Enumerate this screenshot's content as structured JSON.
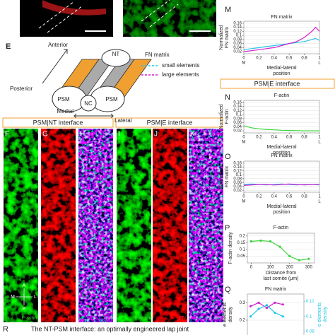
{
  "diagram": {
    "label": "E",
    "anterior": "Anterior",
    "nt": "NT",
    "posterior": "Posterior",
    "psm_left": "PSM",
    "nc": "NC",
    "psm_right": "PSM",
    "medial": "Medial",
    "lateral": "Lateral",
    "legend": {
      "title": "FN matrix",
      "items": [
        {
          "name": "small elements",
          "color": "#22c5e6"
        },
        {
          "name": "large elements",
          "color": "#d41fd0"
        }
      ]
    }
  },
  "micrographs": {
    "groups": [
      {
        "title": "PSM|NT interface",
        "panels": [
          {
            "label": "F",
            "stain": "F-actin",
            "channel": "green",
            "color": "#3cd23c"
          },
          {
            "label": "G",
            "stain": "FN",
            "channel": "red",
            "color": "#e52222"
          },
          {
            "label": "H",
            "stain": "FN",
            "channel": "merge",
            "color": "#d41fd0"
          }
        ]
      },
      {
        "title": "PSM|E interface",
        "panels": [
          {
            "label": "I",
            "stain": "F-actin",
            "channel": "green",
            "color": "#3cd23c"
          },
          {
            "label": "J",
            "stain": "FN",
            "channel": "red",
            "color": "#e52222"
          },
          {
            "label": "K",
            "stain": "FN",
            "channel": "merge",
            "color": "#d41fd0"
          }
        ]
      }
    ],
    "compass": {
      "a": "A",
      "p": "P",
      "m": "M",
      "l": "L"
    }
  },
  "right_header": "PSM|E interface",
  "plots": [
    {
      "type": "line",
      "label": "M",
      "title": "FN matrix",
      "ylabel": [
        "Normalized",
        "FN matrix"
      ],
      "xlabel": [
        "Medial-lateral",
        "position"
      ],
      "end_labels": [
        "M",
        "L"
      ],
      "xlim": [
        0,
        1
      ],
      "xticks": [
        0,
        0.2,
        0.4,
        0.6,
        0.8,
        1
      ],
      "ylim": [
        0.01,
        0.17
      ],
      "yticks": [
        0.02,
        0.04,
        0.06,
        0.08,
        0.1,
        0.12,
        0.14,
        0.16
      ],
      "x": [
        0,
        0.1,
        0.2,
        0.3,
        0.4,
        0.5,
        0.6,
        0.7,
        0.8,
        0.9,
        0.95,
        1
      ],
      "series": [
        {
          "color": "#22c5e6",
          "values": [
            0.03,
            0.035,
            0.04,
            0.045,
            0.05,
            0.055,
            0.06,
            0.065,
            0.07,
            0.08,
            0.085,
            0.075
          ]
        },
        {
          "color": "#d41fd0",
          "values": [
            0.02,
            0.025,
            0.03,
            0.035,
            0.04,
            0.05,
            0.06,
            0.07,
            0.09,
            0.12,
            0.14,
            0.12
          ]
        }
      ]
    },
    {
      "type": "line",
      "label": "N",
      "title": "F-actin",
      "ylabel": [
        "Normalized",
        "F-actin"
      ],
      "xlabel": [
        "Medial-lateral",
        "position"
      ],
      "end_labels": [
        "M",
        "L"
      ],
      "xlim": [
        0,
        1
      ],
      "xticks": [
        0,
        0.2,
        0.4,
        0.6,
        0.8,
        1
      ],
      "ylim": [
        0.01,
        0.17
      ],
      "yticks": [
        0.02,
        0.04,
        0.06,
        0.08,
        0.1,
        0.12,
        0.14,
        0.16
      ],
      "x": [
        0,
        0.1,
        0.2,
        0.3,
        0.4,
        0.5,
        0.6,
        0.7,
        0.8,
        0.9,
        1
      ],
      "series": [
        {
          "color": "#3cd23c",
          "values": [
            0.045,
            0.035,
            0.03,
            0.027,
            0.025,
            0.023,
            0.022,
            0.021,
            0.02,
            0.02,
            0.02
          ]
        }
      ]
    },
    {
      "type": "line",
      "label": "O",
      "title": "FN matrix",
      "ylabel": [
        "Normalized",
        "FN matrix"
      ],
      "xlabel": [
        "Medial-lateral",
        "position"
      ],
      "end_labels": [
        "M",
        "L"
      ],
      "xlim": [
        0,
        1
      ],
      "xticks": [
        0,
        0.2,
        0.4,
        0.6,
        0.8,
        1
      ],
      "ylim": [
        0.01,
        0.17
      ],
      "yticks": [
        0.02,
        0.04,
        0.06,
        0.08,
        0.1,
        0.12,
        0.14,
        0.16
      ],
      "x": [
        0,
        0.1,
        0.2,
        0.3,
        0.4,
        0.5,
        0.6,
        0.7,
        0.8,
        0.9,
        1
      ],
      "series": [
        {
          "color": "#22c5e6",
          "values": [
            0.05,
            0.052,
            0.05,
            0.048,
            0.05,
            0.052,
            0.05,
            0.048,
            0.05,
            0.05,
            0.048
          ]
        },
        {
          "color": "#d41fd0",
          "values": [
            0.045,
            0.048,
            0.05,
            0.05,
            0.047,
            0.05,
            0.052,
            0.05,
            0.048,
            0.05,
            0.05
          ]
        }
      ]
    },
    {
      "type": "line",
      "label": "P",
      "title": "F-actin",
      "ylabel": [
        "F-actin density"
      ],
      "xlabel": [
        "Distance from",
        "last somite (μm)"
      ],
      "markers": true,
      "xlim": [
        -20,
        330
      ],
      "xticks": [
        0,
        100,
        200,
        300
      ],
      "ylim": [
        0,
        0.22
      ],
      "yticks": [
        0.05,
        0.1,
        0.15,
        0.2
      ],
      "x": [
        0,
        50,
        100,
        150,
        200,
        250,
        300
      ],
      "series": [
        {
          "color": "#3cd23c",
          "values": [
            0.16,
            0.165,
            0.16,
            0.12,
            0.05,
            0.02,
            0.03
          ]
        }
      ]
    },
    {
      "type": "line",
      "label": "Q",
      "title": "FN matrix",
      "ylabel": [
        "e elements",
        "density"
      ],
      "y2label": [
        "e elements",
        "density"
      ],
      "markers": true,
      "xlim": [
        -20,
        330
      ],
      "ylim": [
        0.05,
        0.35
      ],
      "yticks": [
        0.1,
        0.2,
        0.3
      ],
      "y2lim": [
        0.06,
        0.13
      ],
      "y2ticks": [
        0.08,
        0.1,
        0.12
      ],
      "x": [
        0,
        50,
        100,
        150,
        200
      ],
      "series": [
        {
          "color": "#d41fd0",
          "values": [
            0.28,
            0.3,
            0.27,
            0.3,
            0.29
          ]
        },
        {
          "color": "#22c5e6",
          "axis": "y2",
          "values": [
            0.1,
            0.11,
            0.115,
            0.105,
            0.1
          ]
        }
      ]
    }
  ],
  "caption": {
    "label": "R",
    "text": "The NT-PSM interface: an optimally engineered lap joint"
  }
}
